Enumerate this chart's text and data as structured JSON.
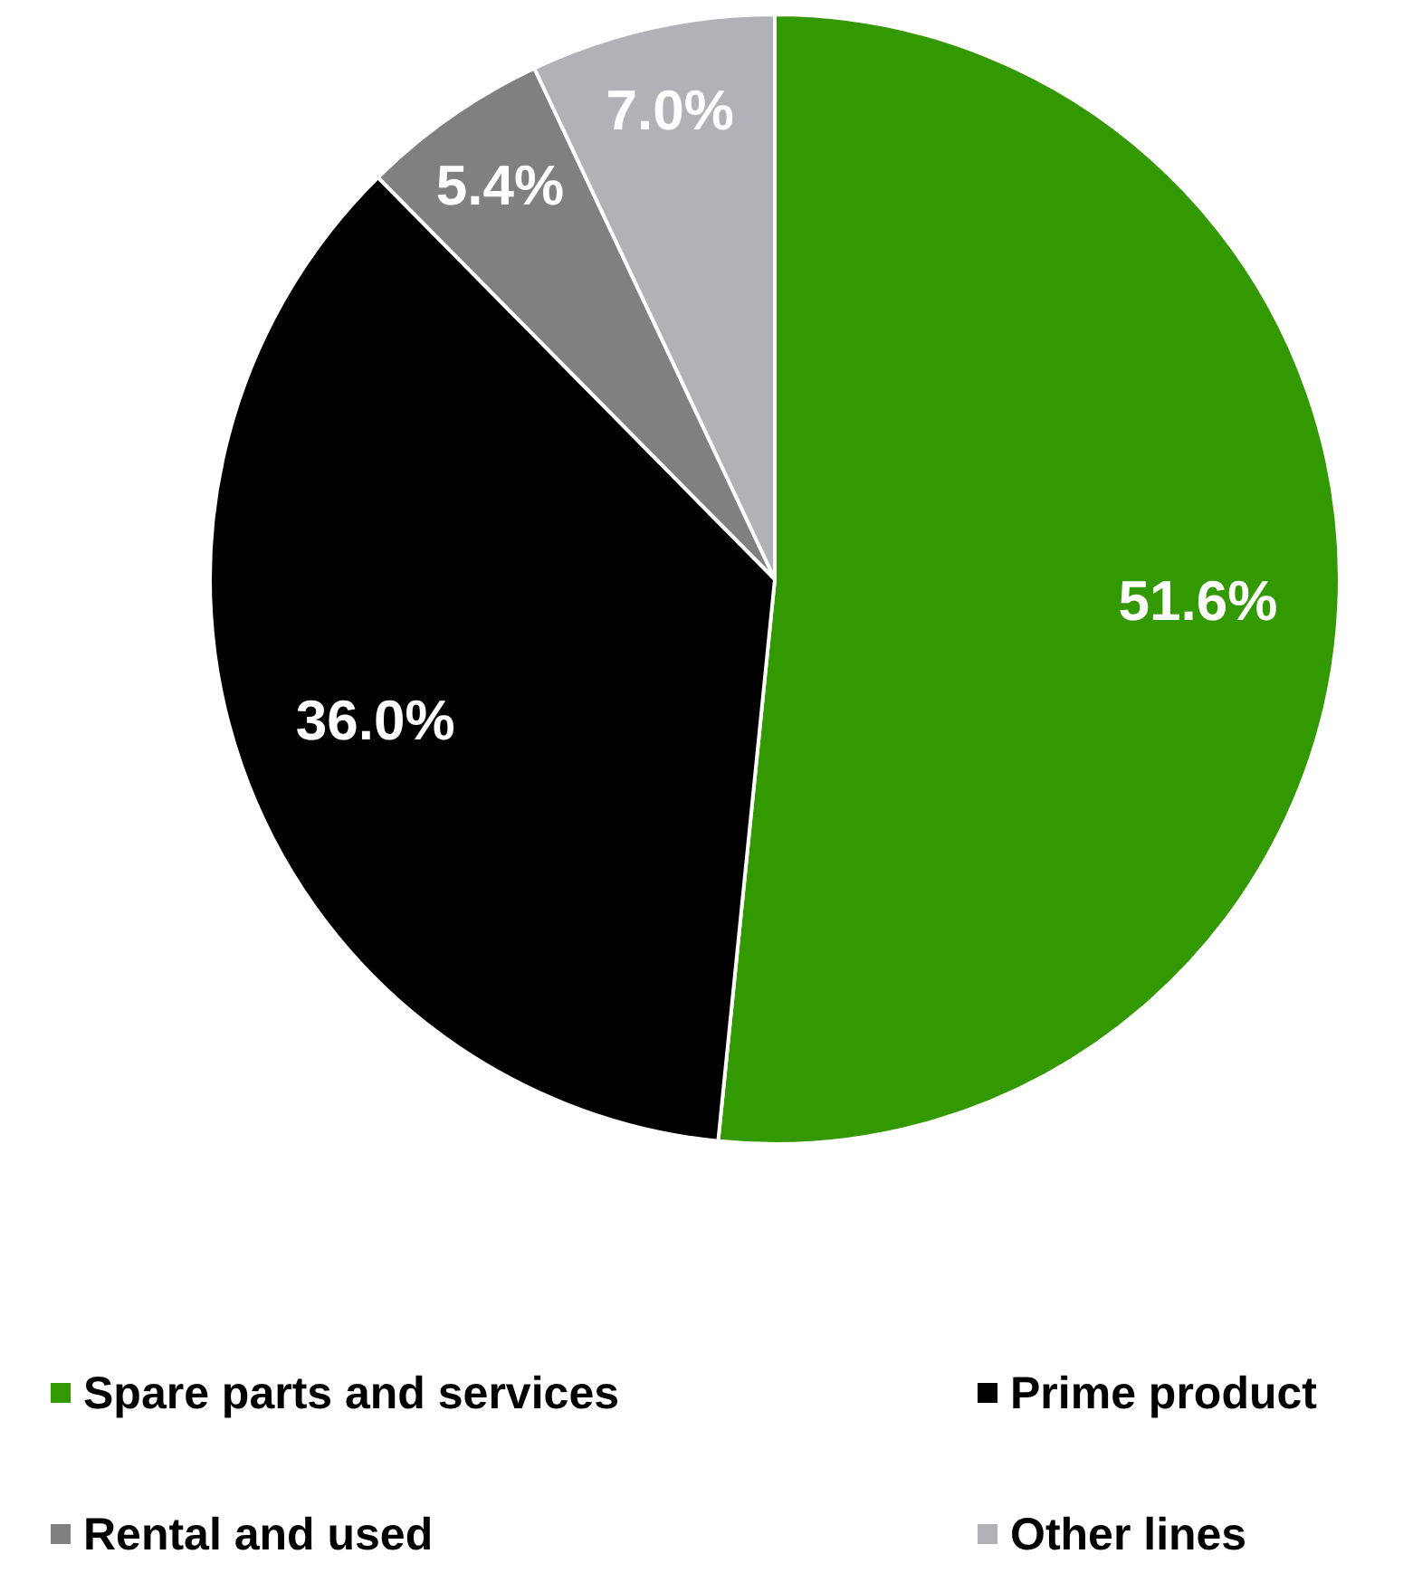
{
  "chart_data": {
    "type": "pie",
    "categories": [
      "Spare parts and services",
      "Prime product",
      "Rental and used",
      "Other lines"
    ],
    "values": [
      51.6,
      36.0,
      5.4,
      7.0
    ],
    "value_labels": [
      "51.6%",
      "36.0%",
      "5.4%",
      "7.0%"
    ],
    "colors": [
      "#339900",
      "#000000",
      "#808080",
      "#b1b1b8"
    ],
    "legend": "bottom"
  }
}
